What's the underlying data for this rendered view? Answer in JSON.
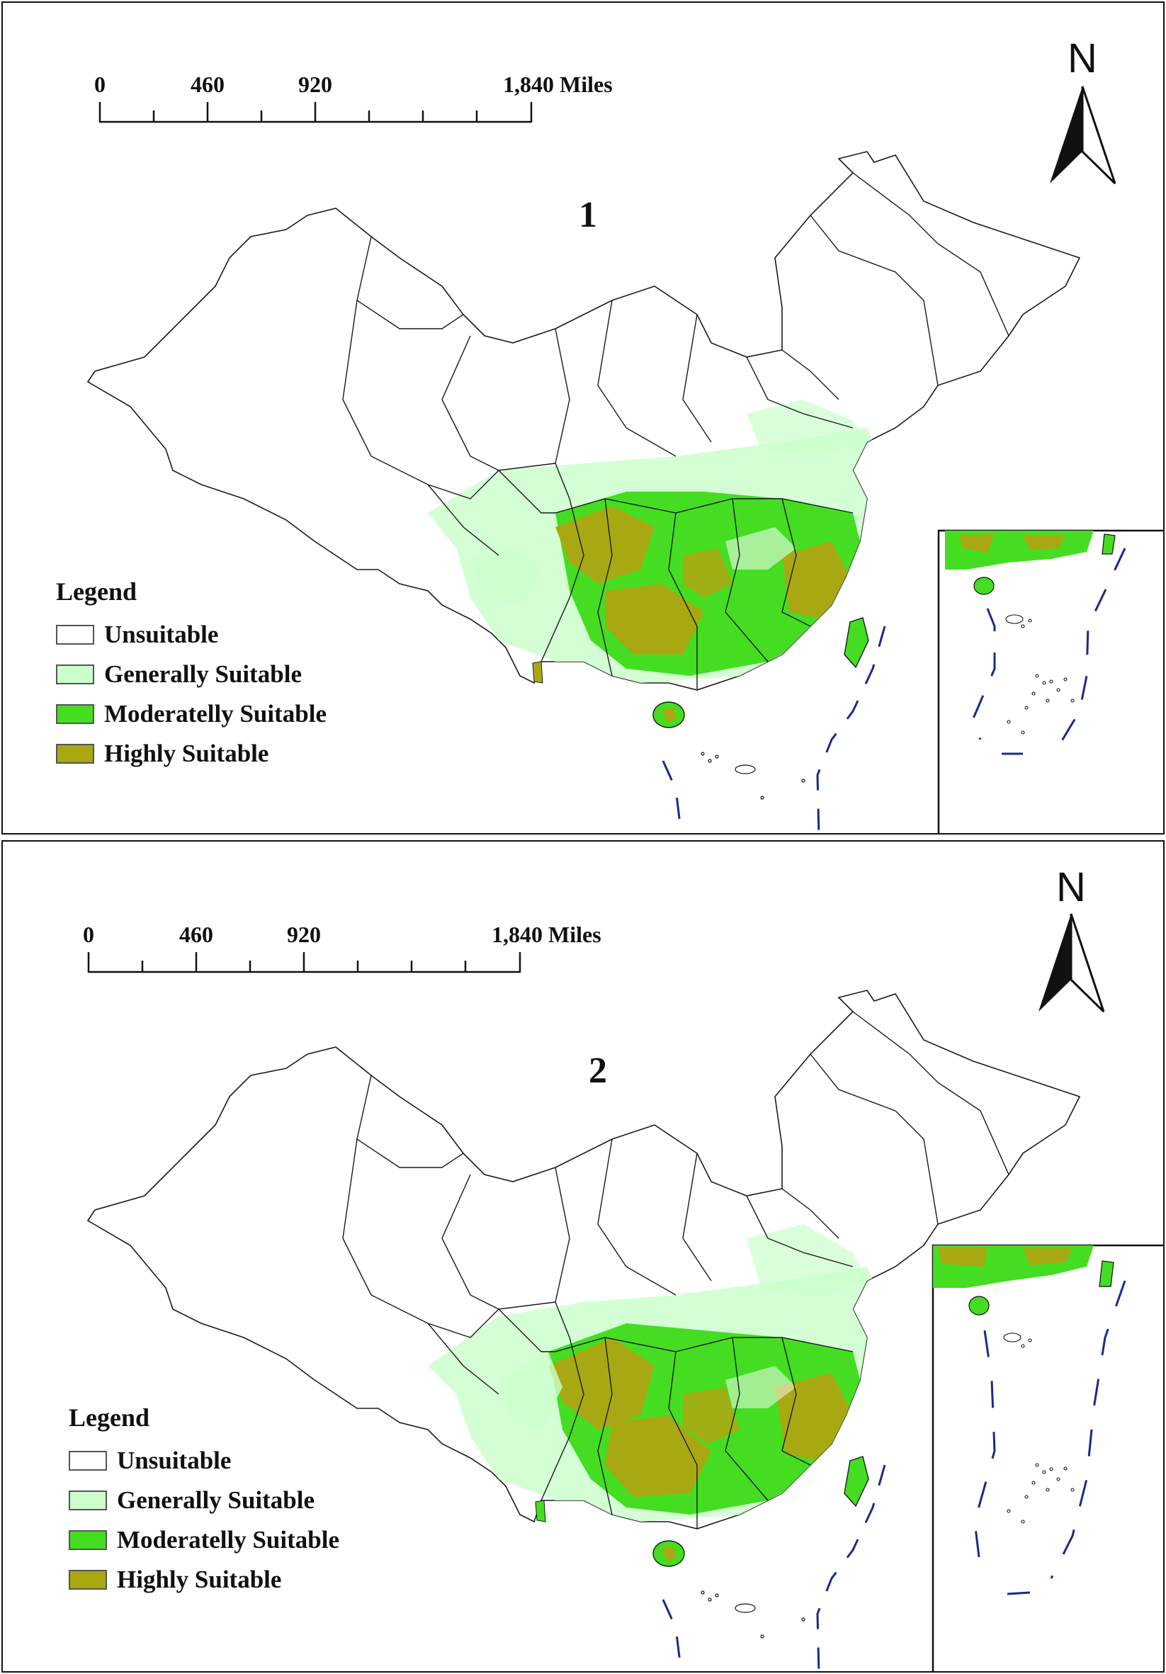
{
  "legend_items": [
    {
      "label": "Unsuitable",
      "color": "#ffffff"
    },
    {
      "label": "Generally Suitable",
      "color": "#ccffcc"
    },
    {
      "label": "Moderatelly Suitable",
      "color": "#44dd22"
    },
    {
      "label": "Highly Suitable",
      "color": "#a8a812"
    }
  ],
  "panels": [
    {
      "number": "1",
      "legend_title": "Legend",
      "scale_bar": {
        "ticks": [
          "0",
          "460",
          "920"
        ],
        "end_label": "1,840 Miles"
      },
      "north": "N"
    },
    {
      "number": "2",
      "legend_title": "Legend",
      "scale_bar": {
        "ticks": [
          "0",
          "460",
          "920"
        ],
        "end_label": "1,840 Miles"
      },
      "north": "N"
    }
  ],
  "colors": {
    "border_line": "#222222",
    "boundary_line": "#1a1a1a",
    "maritime_dash": "#1a2a8a",
    "generally_suitable": "#ccffcc",
    "moderately_suitable": "#44dd22",
    "highly_suitable": "#a8a812"
  }
}
